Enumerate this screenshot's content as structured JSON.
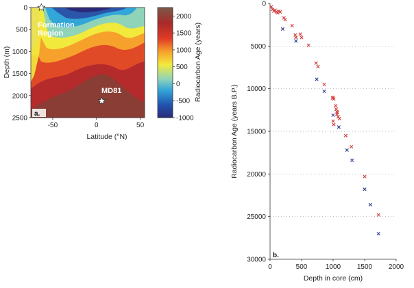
{
  "chart_data": [
    {
      "type": "heatmap",
      "panel_label": "a.",
      "xlabel": "Latitude (°N)",
      "ylabel": "Depth (m)",
      "xlim": [
        -75,
        55
      ],
      "ylim": [
        2500,
        0
      ],
      "xticks": [
        "-50",
        "0",
        "50"
      ],
      "yticks": [
        "0",
        "500",
        "1000",
        "1500",
        "2000",
        "2500"
      ],
      "colorbar": {
        "label": "Radiocarbon Age (years)",
        "range": [
          -1000,
          2250
        ],
        "ticks": [
          "2000",
          "1500",
          "1000",
          "500",
          "0",
          "-500",
          "-1000"
        ],
        "stops": [
          "#2a2a7a",
          "#2255b0",
          "#33a6d9",
          "#8fd3b8",
          "#f1ea3d",
          "#f6a12b",
          "#df3b27",
          "#a82a2a",
          "#7a5a48"
        ]
      },
      "annotations": [
        {
          "text": "Formation Region",
          "x": -65,
          "y": 300
        },
        {
          "text": "MD81",
          "x": 6,
          "y": 2100
        }
      ],
      "markers": [
        {
          "name": "formation-star",
          "x": -63,
          "y": 0
        },
        {
          "name": "md81-star",
          "x": 6,
          "y": 2120
        }
      ]
    },
    {
      "type": "scatter",
      "panel_label": "b.",
      "xlabel": "Depth in core (cm)",
      "ylabel": "Radiocarbon Age (years B.P.)",
      "xlim": [
        0,
        2000
      ],
      "ylim": [
        30000,
        0
      ],
      "xticks": [
        "0",
        "500",
        "1000",
        "1500",
        "2000"
      ],
      "yticks": [
        "0",
        "5000",
        "10000",
        "15000",
        "20000",
        "25000",
        "30000"
      ],
      "grid": "horizontal dotted",
      "series": [
        {
          "color": "#d23a3a",
          "points": [
            [
              20,
              400
            ],
            [
              40,
              700
            ],
            [
              60,
              900
            ],
            [
              80,
              800
            ],
            [
              100,
              1000
            ],
            [
              120,
              1100
            ],
            [
              140,
              900
            ],
            [
              160,
              1000
            ],
            [
              220,
              1700
            ],
            [
              240,
              1900
            ],
            [
              350,
              2600
            ],
            [
              400,
              3700
            ],
            [
              410,
              4000
            ],
            [
              480,
              3600
            ],
            [
              500,
              4000
            ],
            [
              610,
              4900
            ],
            [
              730,
              7000
            ],
            [
              760,
              7400
            ],
            [
              860,
              9500
            ],
            [
              990,
              11100
            ],
            [
              1000,
              11000
            ],
            [
              1010,
              11200
            ],
            [
              1040,
              12000
            ],
            [
              1050,
              12400
            ],
            [
              1060,
              12700
            ],
            [
              1060,
              13000
            ],
            [
              1070,
              12800
            ],
            [
              1080,
              13300
            ],
            [
              1000,
              13800
            ],
            [
              1010,
              14200
            ],
            [
              1100,
              13500
            ],
            [
              1200,
              15500
            ],
            [
              1290,
              16800
            ],
            [
              1500,
              20300
            ],
            [
              1720,
              24800
            ]
          ]
        },
        {
          "color": "#2a3b8f",
          "points": [
            [
              200,
              3000
            ],
            [
              410,
              4400
            ],
            [
              740,
              8900
            ],
            [
              860,
              10300
            ],
            [
              1000,
              13100
            ],
            [
              1090,
              14500
            ],
            [
              1220,
              17200
            ],
            [
              1300,
              18400
            ],
            [
              1500,
              21800
            ],
            [
              1590,
              23600
            ],
            [
              1720,
              27000
            ]
          ]
        }
      ]
    }
  ]
}
